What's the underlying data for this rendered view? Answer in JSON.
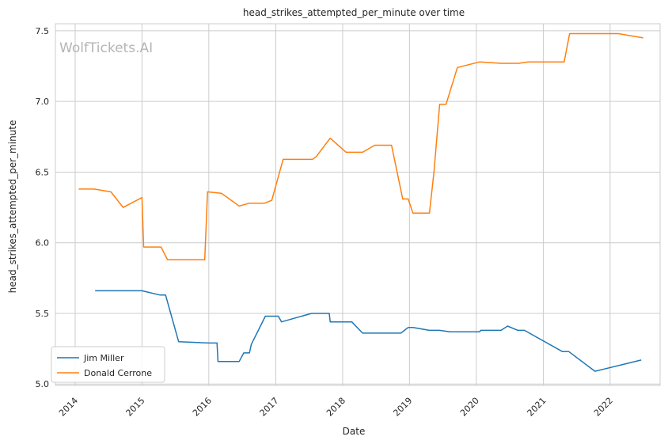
{
  "watermark": "WolfTickets.AI",
  "chart_data": {
    "type": "line",
    "title": "head_strikes_attempted_per_minute over time",
    "xlabel": "Date",
    "ylabel": "head_strikes_attempted_per_minute",
    "xlim": [
      "2013-09-15",
      "2022-10-01"
    ],
    "ylim": [
      4.99,
      7.55
    ],
    "x_ticks": [
      "2014",
      "2015",
      "2016",
      "2017",
      "2018",
      "2019",
      "2020",
      "2021",
      "2022"
    ],
    "y_ticks": [
      "5.0",
      "5.5",
      "6.0",
      "6.5",
      "7.0",
      "7.5"
    ],
    "grid": true,
    "legend_position": "lower-left",
    "series": [
      {
        "name": "Jim Miller",
        "color": "#1f77b4",
        "points": [
          [
            "2014-04-20",
            5.66
          ],
          [
            "2015-01-01",
            5.66
          ],
          [
            "2015-04-10",
            5.63
          ],
          [
            "2015-05-10",
            5.63
          ],
          [
            "2015-07-20",
            5.3
          ],
          [
            "2016-01-01",
            5.29
          ],
          [
            "2016-02-15",
            5.29
          ],
          [
            "2016-02-20",
            5.16
          ],
          [
            "2016-06-15",
            5.16
          ],
          [
            "2016-07-10",
            5.22
          ],
          [
            "2016-08-10",
            5.22
          ],
          [
            "2016-08-20",
            5.28
          ],
          [
            "2016-11-05",
            5.48
          ],
          [
            "2017-01-15",
            5.48
          ],
          [
            "2017-02-01",
            5.44
          ],
          [
            "2017-07-15",
            5.5
          ],
          [
            "2017-10-20",
            5.5
          ],
          [
            "2017-10-25",
            5.44
          ],
          [
            "2018-02-20",
            5.44
          ],
          [
            "2018-04-20",
            5.36
          ],
          [
            "2018-11-15",
            5.36
          ],
          [
            "2018-12-25",
            5.4
          ],
          [
            "2019-01-20",
            5.4
          ],
          [
            "2019-04-20",
            5.38
          ],
          [
            "2019-06-15",
            5.38
          ],
          [
            "2019-08-10",
            5.37
          ],
          [
            "2020-01-20",
            5.37
          ],
          [
            "2020-01-25",
            5.38
          ],
          [
            "2020-05-15",
            5.38
          ],
          [
            "2020-06-20",
            5.41
          ],
          [
            "2020-08-15",
            5.38
          ],
          [
            "2020-09-20",
            5.38
          ],
          [
            "2021-04-15",
            5.23
          ],
          [
            "2021-05-20",
            5.23
          ],
          [
            "2021-10-10",
            5.09
          ],
          [
            "2022-06-20",
            5.17
          ]
        ]
      },
      {
        "name": "Donald Cerrone",
        "color": "#ff7f0e",
        "points": [
          [
            "2014-01-20",
            6.38
          ],
          [
            "2014-04-15",
            6.38
          ],
          [
            "2014-07-15",
            6.36
          ],
          [
            "2014-09-20",
            6.25
          ],
          [
            "2015-01-01",
            6.32
          ],
          [
            "2015-01-10",
            5.97
          ],
          [
            "2015-04-15",
            5.97
          ],
          [
            "2015-05-20",
            5.88
          ],
          [
            "2015-12-10",
            5.88
          ],
          [
            "2015-12-25",
            6.36
          ],
          [
            "2016-03-10",
            6.35
          ],
          [
            "2016-06-15",
            6.26
          ],
          [
            "2016-08-10",
            6.28
          ],
          [
            "2016-11-01",
            6.28
          ],
          [
            "2016-12-10",
            6.3
          ],
          [
            "2017-02-10",
            6.59
          ],
          [
            "2017-07-20",
            6.59
          ],
          [
            "2017-08-10",
            6.61
          ],
          [
            "2017-10-25",
            6.74
          ],
          [
            "2018-01-20",
            6.64
          ],
          [
            "2018-04-20",
            6.64
          ],
          [
            "2018-06-25",
            6.69
          ],
          [
            "2018-09-25",
            6.69
          ],
          [
            "2018-11-25",
            6.31
          ],
          [
            "2018-12-25",
            6.31
          ],
          [
            "2019-01-20",
            6.21
          ],
          [
            "2019-04-20",
            6.21
          ],
          [
            "2019-05-15",
            6.5
          ],
          [
            "2019-06-15",
            6.98
          ],
          [
            "2019-07-20",
            6.98
          ],
          [
            "2019-09-20",
            7.24
          ],
          [
            "2020-01-20",
            7.28
          ],
          [
            "2020-05-15",
            7.27
          ],
          [
            "2020-08-20",
            7.27
          ],
          [
            "2020-10-10",
            7.28
          ],
          [
            "2021-04-25",
            7.28
          ],
          [
            "2021-05-25",
            7.48
          ],
          [
            "2022-02-15",
            7.48
          ],
          [
            "2022-07-01",
            7.45
          ]
        ]
      }
    ]
  }
}
